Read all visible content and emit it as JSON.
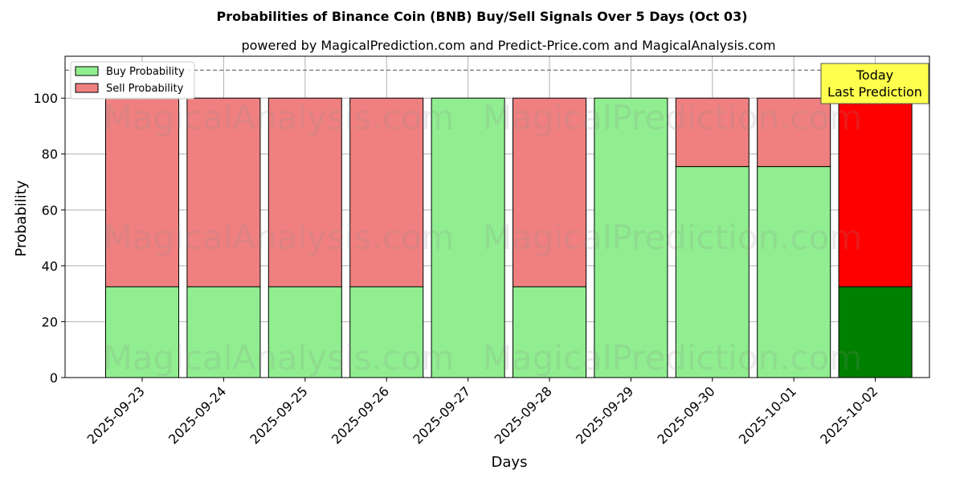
{
  "chart_data": {
    "type": "bar",
    "stacked": true,
    "title": "Probabilities of Binance Coin (BNB) Buy/Sell Signals Over 5 Days (Oct 03)",
    "subtitle": "powered by MagicalPrediction.com and Predict-Price.com and MagicalAnalysis.com",
    "xlabel": "Days",
    "ylabel": "Probability",
    "ylim": [
      0,
      115
    ],
    "yticks": [
      0,
      20,
      40,
      60,
      80,
      100
    ],
    "grid": true,
    "legend_position": "top-left",
    "reference_line": {
      "y": 110,
      "style": "dashed"
    },
    "categories": [
      "2025-09-23",
      "2025-09-24",
      "2025-09-25",
      "2025-09-26",
      "2025-09-27",
      "2025-09-28",
      "2025-09-29",
      "2025-09-30",
      "2025-10-01",
      "2025-10-02"
    ],
    "series": [
      {
        "name": "Buy Probability",
        "color": "#90ee90",
        "highlight_color": "#008000",
        "values": [
          32.5,
          32.5,
          32.5,
          32.5,
          100,
          32.5,
          100,
          75.5,
          75.5,
          32.5
        ]
      },
      {
        "name": "Sell Probability",
        "color": "#f08080",
        "highlight_color": "#ff0000",
        "values": [
          67.5,
          67.5,
          67.5,
          67.5,
          0,
          67.5,
          0,
          24.5,
          24.5,
          67.5
        ]
      }
    ],
    "highlight_index": 9,
    "annotation": {
      "lines": [
        "Today",
        "Last Prediction"
      ],
      "color": "#ffff4d"
    },
    "watermarks": [
      "MagicalAnalysis.com",
      "MagicalPrediction.com"
    ]
  }
}
